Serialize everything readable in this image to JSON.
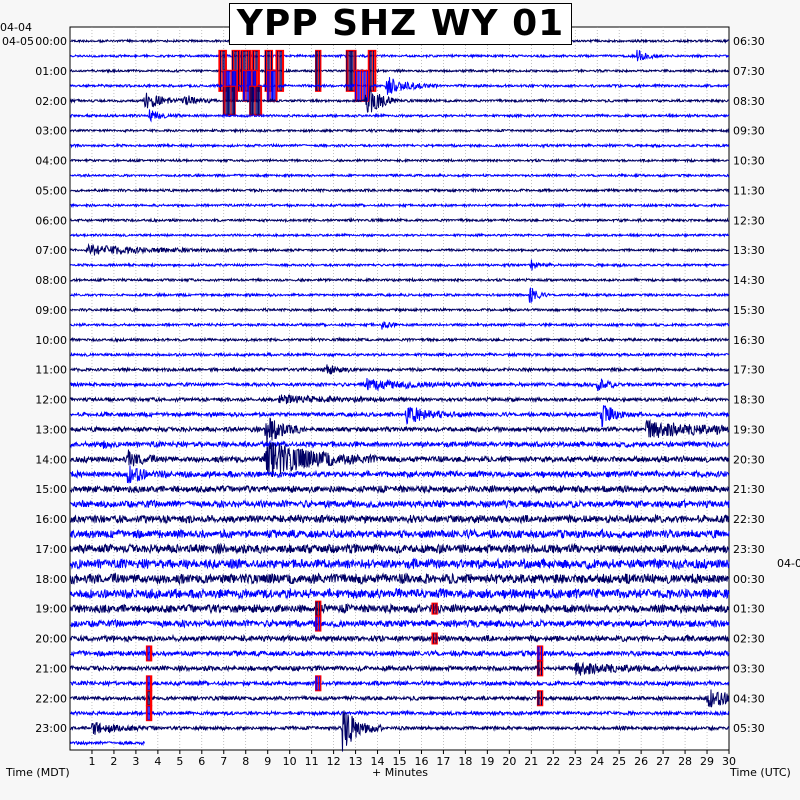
{
  "title": "YPP SHZ WY 01",
  "left_date_top": "04-04",
  "left_date_second": "04-05",
  "right_date_partial": "04-0",
  "chart_data": {
    "type": "line",
    "title": "YPP SHZ WY 01",
    "xlabel": "+ Minutes",
    "left_axis_label": "Time (MDT)",
    "right_axis_label": "Time (UTC)",
    "xlim": [
      0,
      30
    ],
    "x_ticks": [
      "1",
      "2",
      "3",
      "4",
      "5",
      "6",
      "7",
      "8",
      "9",
      "10",
      "11",
      "12",
      "13",
      "14",
      "15",
      "16",
      "17",
      "18",
      "19",
      "20",
      "21",
      "22",
      "23",
      "24",
      "25",
      "26",
      "27",
      "28",
      "29",
      "30"
    ],
    "left_hour_labels": [
      "00:00",
      "01:00",
      "02:00",
      "03:00",
      "04:00",
      "05:00",
      "06:00",
      "07:00",
      "08:00",
      "09:00",
      "10:00",
      "11:00",
      "12:00",
      "13:00",
      "14:00",
      "15:00",
      "16:00",
      "17:00",
      "18:00",
      "19:00",
      "20:00",
      "21:00",
      "22:00",
      "23:00"
    ],
    "right_hour_labels": [
      "06:30",
      "07:30",
      "08:30",
      "09:30",
      "10:30",
      "11:30",
      "12:30",
      "13:30",
      "14:30",
      "15:30",
      "16:30",
      "17:30",
      "18:30",
      "19:30",
      "20:30",
      "21:30",
      "22:30",
      "23:30",
      "00:30",
      "01:30",
      "02:30",
      "03:30",
      "04:30",
      "05:30"
    ],
    "rows_per_hour": 2,
    "trace_colors": [
      "#000066",
      "#0000ff"
    ],
    "clip_color": "#ff0000",
    "background": "#ffffff",
    "grid": "dotted-vertical",
    "noise_profile": [
      1.2,
      1.2,
      1.2,
      1.3,
      1.3,
      1.3,
      1.2,
      1.3,
      1.2,
      1.2,
      1.3,
      1.3,
      1.3,
      1.2,
      1.2,
      1.3,
      1.3,
      1.3,
      1.3,
      1.4,
      1.4,
      1.5,
      1.6,
      1.8,
      1.9,
      2.1,
      2.4,
      2.8,
      3.0,
      3.2,
      3.4,
      3.7,
      4.0,
      4.2,
      4.6,
      5.0,
      5.2,
      5.0,
      4.2,
      3.6,
      3.0,
      2.6,
      2.4,
      2.2,
      2.0,
      1.9,
      1.8,
      1.7
    ],
    "events": [
      {
        "row": 2,
        "minute": 6.8,
        "amp": 40,
        "dur": 0.3,
        "clip": true
      },
      {
        "row": 2,
        "minute": 7.4,
        "amp": 40,
        "dur": 0.3,
        "clip": true
      },
      {
        "row": 2,
        "minute": 7.8,
        "amp": 40,
        "dur": 0.4,
        "clip": true
      },
      {
        "row": 2,
        "minute": 8.3,
        "amp": 40,
        "dur": 0.3,
        "clip": true
      },
      {
        "row": 2,
        "minute": 8.9,
        "amp": 40,
        "dur": 0.3,
        "clip": true
      },
      {
        "row": 2,
        "minute": 9.4,
        "amp": 40,
        "dur": 0.3,
        "clip": true
      },
      {
        "row": 2,
        "minute": 11.2,
        "amp": 40,
        "dur": 0.2,
        "clip": true
      },
      {
        "row": 2,
        "minute": 12.6,
        "amp": 40,
        "dur": 0.4,
        "clip": true
      },
      {
        "row": 2,
        "minute": 13.6,
        "amp": 40,
        "dur": 0.3,
        "clip": true
      },
      {
        "row": 3,
        "minute": 7.0,
        "amp": 30,
        "dur": 0.6,
        "clip": true
      },
      {
        "row": 3,
        "minute": 7.9,
        "amp": 30,
        "dur": 0.6,
        "clip": true
      },
      {
        "row": 3,
        "minute": 9.0,
        "amp": 30,
        "dur": 0.4,
        "clip": true
      },
      {
        "row": 3,
        "minute": 13.0,
        "amp": 30,
        "dur": 0.6,
        "clip": true
      },
      {
        "row": 3,
        "minute": 14.4,
        "amp": 10,
        "dur": 0.8,
        "clip": false
      },
      {
        "row": 4,
        "minute": 7.0,
        "amp": 28,
        "dur": 0.5,
        "clip": true
      },
      {
        "row": 4,
        "minute": 8.2,
        "amp": 28,
        "dur": 0.5,
        "clip": true
      },
      {
        "row": 4,
        "minute": 13.5,
        "amp": 20,
        "dur": 0.5,
        "clip": false
      },
      {
        "row": 4,
        "minute": 3.4,
        "amp": 9,
        "dur": 0.7,
        "clip": false
      },
      {
        "row": 4,
        "minute": 5.2,
        "amp": 6,
        "dur": 0.5,
        "clip": false
      },
      {
        "row": 5,
        "minute": 3.6,
        "amp": 6,
        "dur": 0.5,
        "clip": false
      },
      {
        "row": 1,
        "minute": 25.8,
        "amp": 7,
        "dur": 0.4,
        "clip": false
      },
      {
        "row": 14,
        "minute": 0.8,
        "amp": 5,
        "dur": 2.6,
        "clip": false
      },
      {
        "row": 15,
        "minute": 21.0,
        "amp": 5,
        "dur": 0.3,
        "clip": false
      },
      {
        "row": 17,
        "minute": 20.9,
        "amp": 10,
        "dur": 0.3,
        "clip": false
      },
      {
        "row": 19,
        "minute": 14.2,
        "amp": 5,
        "dur": 0.3,
        "clip": false
      },
      {
        "row": 22,
        "minute": 11.6,
        "amp": 5,
        "dur": 0.6,
        "clip": false
      },
      {
        "row": 23,
        "minute": 13.5,
        "amp": 5,
        "dur": 2.0,
        "clip": false
      },
      {
        "row": 23,
        "minute": 24.0,
        "amp": 8,
        "dur": 0.4,
        "clip": false
      },
      {
        "row": 24,
        "minute": 9.5,
        "amp": 4,
        "dur": 2.0,
        "clip": false
      },
      {
        "row": 25,
        "minute": 15.3,
        "amp": 9,
        "dur": 1.0,
        "clip": false
      },
      {
        "row": 25,
        "minute": 24.2,
        "amp": 12,
        "dur": 0.5,
        "clip": false
      },
      {
        "row": 26,
        "minute": 8.9,
        "amp": 18,
        "dur": 0.6,
        "clip": false
      },
      {
        "row": 26,
        "minute": 26.2,
        "amp": 8,
        "dur": 3.0,
        "clip": false
      },
      {
        "row": 27,
        "minute": 1.4,
        "amp": 4,
        "dur": 0.3,
        "clip": false
      },
      {
        "row": 28,
        "minute": 8.9,
        "amp": 20,
        "dur": 1.8,
        "clip": false
      },
      {
        "row": 28,
        "minute": 2.6,
        "amp": 8,
        "dur": 0.6,
        "clip": false
      },
      {
        "row": 29,
        "minute": 2.6,
        "amp": 9,
        "dur": 0.6,
        "clip": false
      },
      {
        "row": 38,
        "minute": 11.2,
        "amp": 14,
        "dur": 0.2,
        "clip": true
      },
      {
        "row": 38,
        "minute": 16.5,
        "amp": 10,
        "dur": 0.2,
        "clip": true
      },
      {
        "row": 39,
        "minute": 11.2,
        "amp": 14,
        "dur": 0.2,
        "clip": true
      },
      {
        "row": 40,
        "minute": 16.5,
        "amp": 10,
        "dur": 0.2,
        "clip": true
      },
      {
        "row": 41,
        "minute": 3.5,
        "amp": 14,
        "dur": 0.2,
        "clip": true
      },
      {
        "row": 41,
        "minute": 21.3,
        "amp": 14,
        "dur": 0.2,
        "clip": true
      },
      {
        "row": 42,
        "minute": 21.3,
        "amp": 14,
        "dur": 0.2,
        "clip": true
      },
      {
        "row": 42,
        "minute": 23.0,
        "amp": 6,
        "dur": 2.0,
        "clip": false
      },
      {
        "row": 43,
        "minute": 3.5,
        "amp": 14,
        "dur": 0.2,
        "clip": true
      },
      {
        "row": 43,
        "minute": 11.2,
        "amp": 14,
        "dur": 0.2,
        "clip": true
      },
      {
        "row": 44,
        "minute": 3.5,
        "amp": 14,
        "dur": 0.2,
        "clip": true
      },
      {
        "row": 44,
        "minute": 21.3,
        "amp": 14,
        "dur": 0.2,
        "clip": true
      },
      {
        "row": 44,
        "minute": 29.0,
        "amp": 9,
        "dur": 1.2,
        "clip": false
      },
      {
        "row": 45,
        "minute": 3.5,
        "amp": 14,
        "dur": 0.2,
        "clip": true
      },
      {
        "row": 46,
        "minute": 12.4,
        "amp": 24,
        "dur": 0.6,
        "clip": false
      },
      {
        "row": 46,
        "minute": 1.0,
        "amp": 6,
        "dur": 1.0,
        "clip": false
      }
    ],
    "last_row": 47,
    "last_row_end_minute": 3.4
  }
}
